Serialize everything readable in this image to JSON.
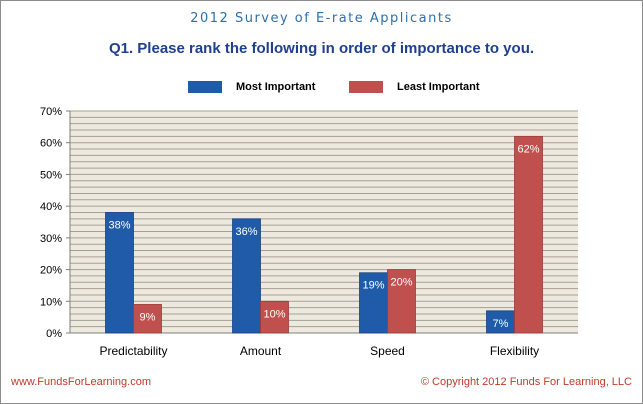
{
  "header": {
    "survey_title": "2012 Survey of E-rate Applicants",
    "question": "Q1. Please rank the following in order of importance to you."
  },
  "footer": {
    "website": "www.FundsForLearning.com",
    "copyright": "© Copyright 2012 Funds For Learning, LLC"
  },
  "colors": {
    "most_important": "#1f5ba8",
    "least_important": "#c0504d",
    "plot_background": "#eee9df",
    "gridline": "#a59f93"
  },
  "chart_data": {
    "type": "bar",
    "categories": [
      "Predictability",
      "Amount",
      "Speed",
      "Flexibility"
    ],
    "series": [
      {
        "name": "Most Important",
        "values": [
          38,
          36,
          19,
          7
        ],
        "labels": [
          "38%",
          "36%",
          "19%",
          "7%"
        ]
      },
      {
        "name": "Least Important",
        "values": [
          9,
          10,
          20,
          62
        ],
        "labels": [
          "9%",
          "10%",
          "20%",
          "62%"
        ]
      }
    ],
    "ylim": [
      0,
      70
    ],
    "yticks": [
      0,
      10,
      20,
      30,
      40,
      50,
      60,
      70
    ],
    "ytick_labels": [
      "0%",
      "10%",
      "20%",
      "30%",
      "40%",
      "50%",
      "60%",
      "70%"
    ],
    "minor_step": 2,
    "legend_position": "top-center",
    "grid": true
  }
}
